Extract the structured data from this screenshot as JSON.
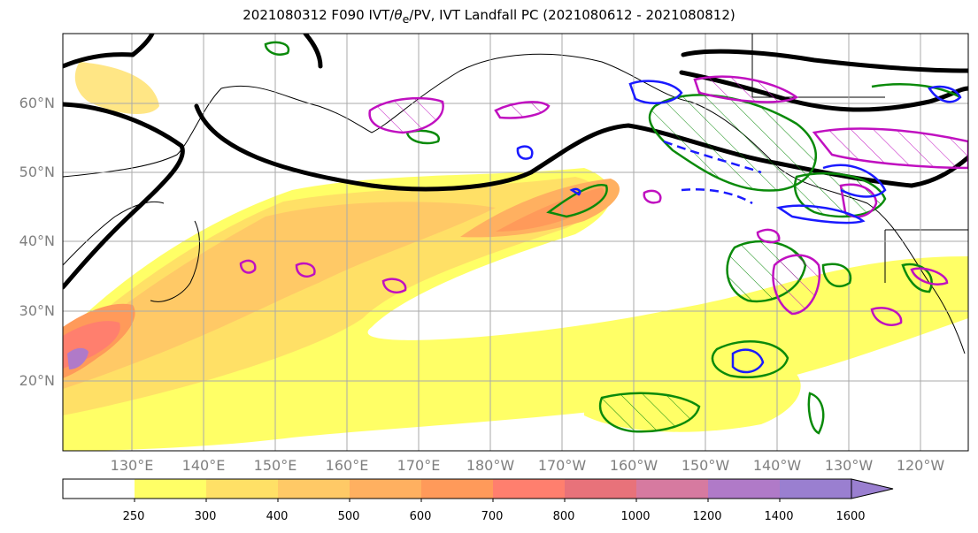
{
  "title": {
    "prefix": "2021080312 F090 IVT/",
    "theta": "θ",
    "theta_sub": "e",
    "suffix": "/PV, IVT Landfall PC (2021080612 - 2021080812)"
  },
  "map": {
    "region": "North Pacific",
    "lat_labels": [
      "60°N",
      "50°N",
      "40°N",
      "30°N",
      "20°N"
    ],
    "lon_labels": [
      "130°E",
      "140°E",
      "150°E",
      "160°E",
      "170°E",
      "180°W",
      "170°W",
      "160°W",
      "150°W",
      "140°W",
      "130°W",
      "120°W"
    ],
    "fill_colors": [
      "#ffffff",
      "#ffff66",
      "#ffe066",
      "#ffc966",
      "#ffb060",
      "#ff9a5a",
      "#ff7f6e",
      "#e8727a",
      "#d67aa0",
      "#b07ac8",
      "#9a7fd0"
    ],
    "contour_colors": {
      "jet_pv": "#000000",
      "positive_pc": "#0a8a0a",
      "theta_e": "#c010c0",
      "negative_pc": "#1a1aff"
    }
  },
  "colorbar": {
    "ticks": [
      "250",
      "300",
      "400",
      "500",
      "600",
      "700",
      "800",
      "1000",
      "1200",
      "1400",
      "1600"
    ],
    "colors": [
      "#ffffff",
      "#ffff66",
      "#ffe066",
      "#ffc966",
      "#ffb060",
      "#ff9a5a",
      "#ff7f6e",
      "#e8727a",
      "#d67aa0",
      "#b07ac8",
      "#9a7fd0"
    ],
    "extend": "max"
  }
}
